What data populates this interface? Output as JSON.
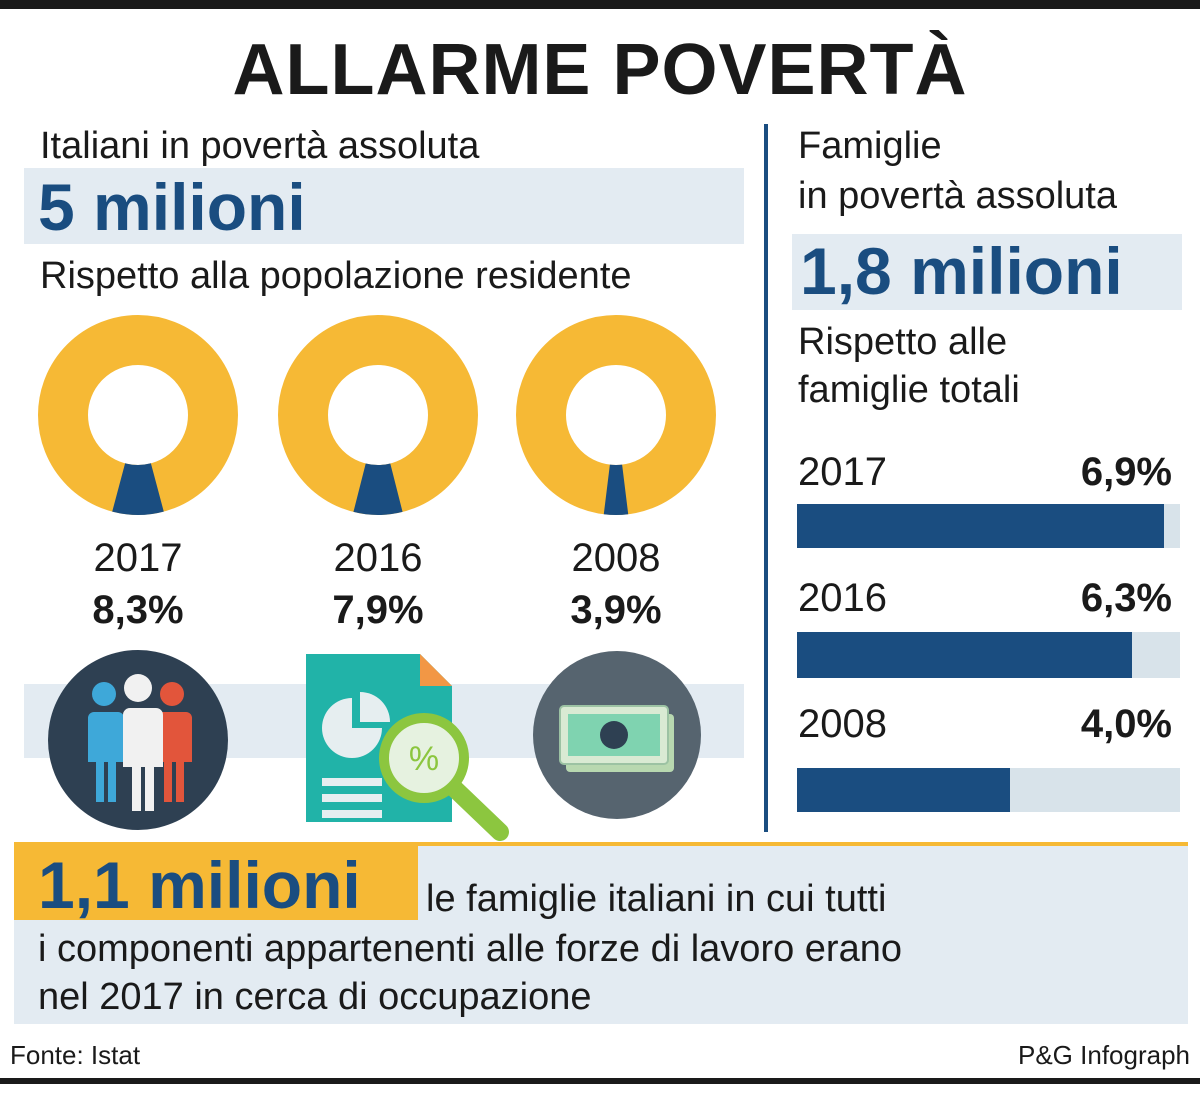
{
  "title": "ALLARME POVERTÀ",
  "left": {
    "heading": "Italiani in povertà assoluta",
    "big_value": "5 milioni",
    "subheading": "Rispetto alla popolazione residente"
  },
  "right": {
    "heading_line1": "Famiglie",
    "heading_line2": "in povertà assoluta",
    "big_value": "1,8 milioni",
    "subheading_line1": "Rispetto alle",
    "subheading_line2": "famiglie totali"
  },
  "bottom": {
    "big_value": "1,1 milioni",
    "line1": "le famiglie italiani in cui tutti",
    "line2": "i componenti appartenenti alle forze di lavoro erano",
    "line3": "nel 2017 in cerca di occupazione"
  },
  "footer": {
    "source": "Fonte: Istat",
    "credit": "P&G Infograph"
  },
  "icons": [
    "people-icon",
    "document-chart-icon",
    "money-icon"
  ],
  "colors": {
    "accent": "#1a4d80",
    "donut": "#f6b935",
    "band": "#e3ebf2",
    "highlight": "#f6b935"
  },
  "chart_data": [
    {
      "type": "pie",
      "categories": [
        "2017",
        "2016",
        "2008"
      ],
      "values": [
        8.3,
        7.9,
        3.9
      ],
      "labels": [
        "8,3%",
        "7,9%",
        "3,9%"
      ]
    },
    {
      "type": "bar",
      "categories": [
        "2017",
        "2016",
        "2008"
      ],
      "values": [
        6.9,
        6.3,
        4.0
      ],
      "labels": [
        "6,9%",
        "6,3%",
        "4,0%"
      ],
      "xlim": [
        0,
        7.2
      ]
    }
  ]
}
